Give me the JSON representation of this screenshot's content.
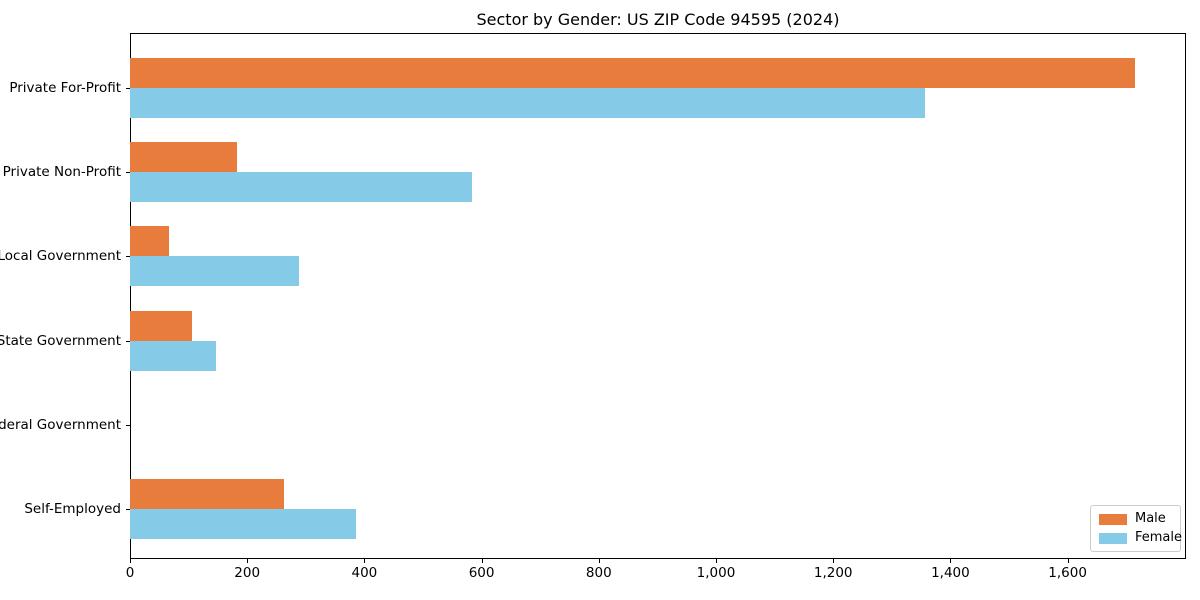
{
  "title": "Sector by Gender: US ZIP Code 94595 (2024)",
  "colors": {
    "male": "#e87c3c",
    "female": "#85cbe8",
    "spine": "#000000",
    "background": "#ffffff",
    "legend_border": "#cccccc",
    "text": "#000000"
  },
  "chart_data": {
    "type": "bar",
    "orientation": "horizontal",
    "title": "Sector by Gender: US ZIP Code 94595 (2024)",
    "categories": [
      "Private For-Profit",
      "Private Non-Profit",
      "Local Government",
      "State Government",
      "Federal Government",
      "Self-Employed"
    ],
    "series": [
      {
        "name": "Male",
        "color": "#e87c3c",
        "values": [
          1715,
          183,
          66,
          105,
          0,
          262
        ]
      },
      {
        "name": "Female",
        "color": "#85cbe8",
        "values": [
          1356,
          583,
          289,
          147,
          0,
          386
        ]
      }
    ],
    "xlabel": "",
    "ylabel": "",
    "xlim": [
      0,
      1802
    ],
    "xticks": [
      0,
      200,
      400,
      600,
      800,
      1000,
      1200,
      1400,
      1600
    ],
    "xtick_labels": [
      "0",
      "200",
      "400",
      "600",
      "800",
      "1,000",
      "1,200",
      "1,400",
      "1,600"
    ],
    "grid": false,
    "legend_position": "lower right"
  },
  "legend": {
    "items": [
      {
        "label": "Male"
      },
      {
        "label": "Female"
      }
    ]
  }
}
